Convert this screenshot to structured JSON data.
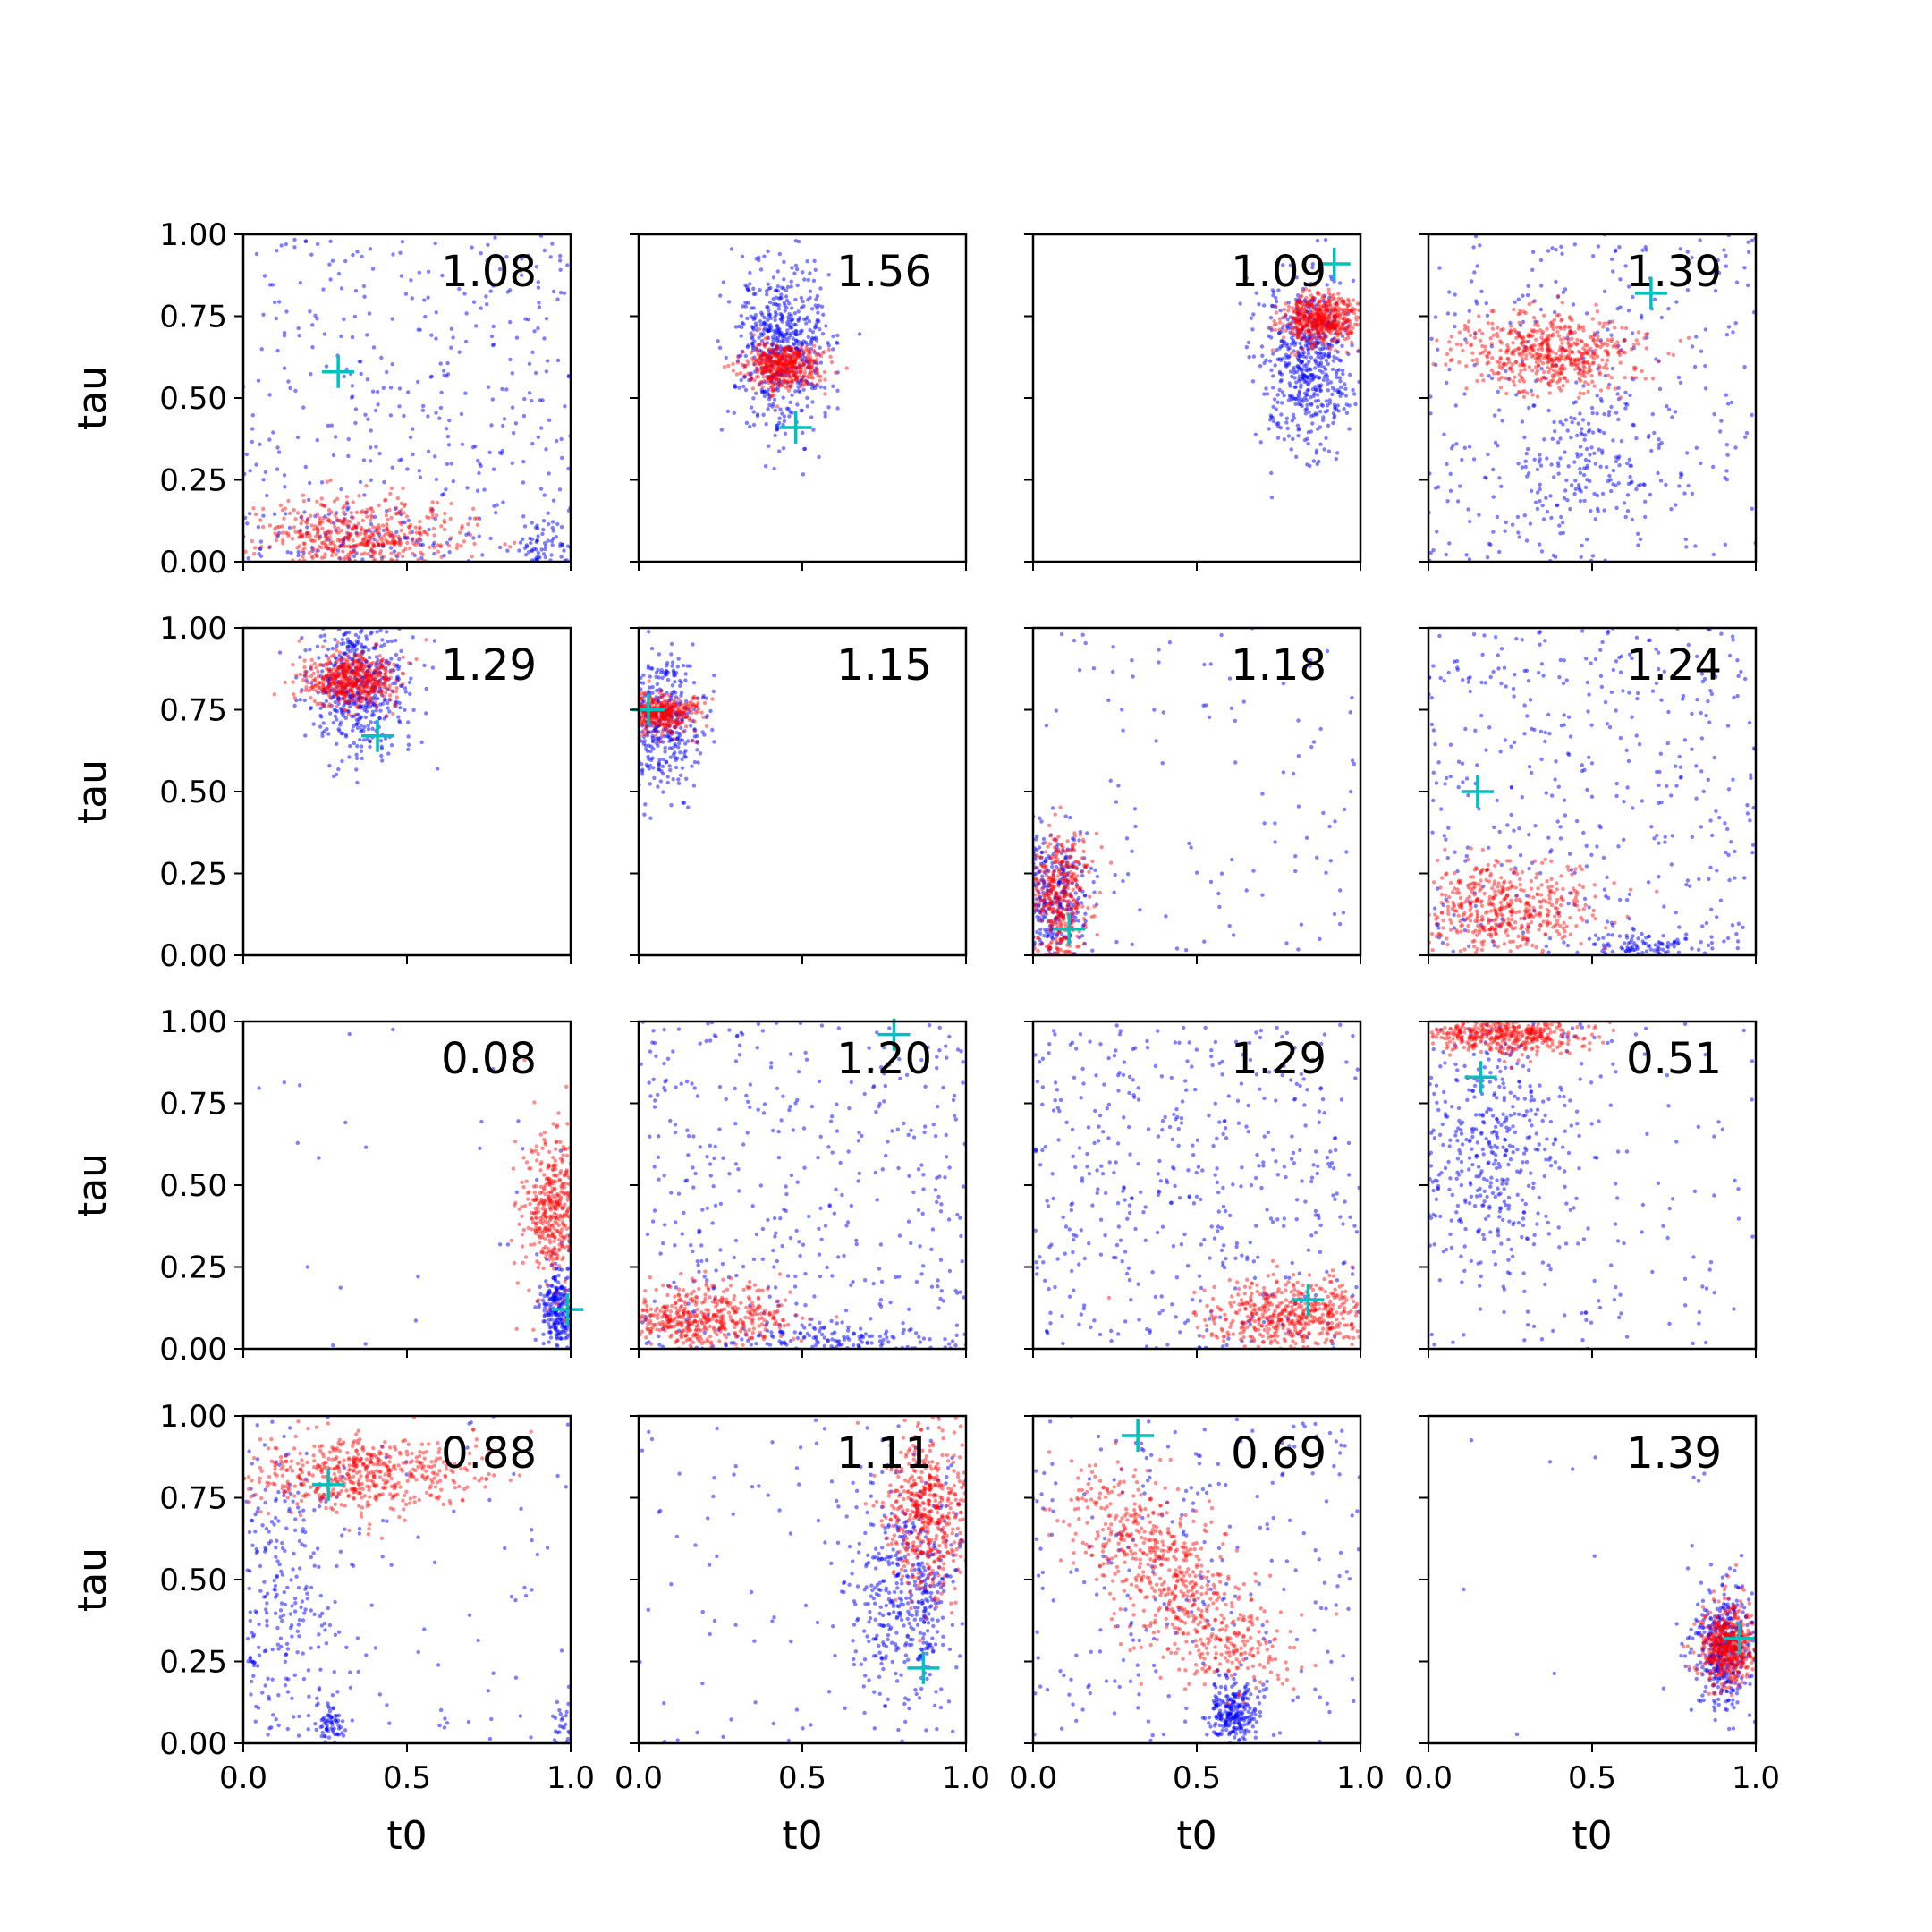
{
  "chart_data": {
    "type": "scatter",
    "layout": {
      "rows": 4,
      "cols": 4
    },
    "xlabel": "t0",
    "ylabel": "tau",
    "xlim": [
      0,
      1
    ],
    "ylim": [
      0,
      1
    ],
    "x_ticks": [
      0.0,
      0.5,
      1.0
    ],
    "x_tick_labels": [
      "0.0",
      "0.5",
      "1.0"
    ],
    "y_ticks": [
      0.0,
      0.25,
      0.5,
      0.75,
      1.0
    ],
    "y_tick_labels": [
      "0.00",
      "0.25",
      "0.50",
      "0.75",
      "1.00"
    ],
    "grid": false,
    "legend": "none",
    "colors": {
      "blue_points": "#0000ff",
      "red_points": "#ff0000",
      "marker": "#00bfbf"
    },
    "series_description": "blue dense scatter, red dense scatter, cyan plus marker",
    "panels": [
      {
        "value_label": "1.08",
        "marker": [
          0.29,
          0.58
        ],
        "blue": [
          {
            "type": "uniform",
            "n": 380
          },
          {
            "cx": 0.93,
            "cy": 0.05,
            "sx": 0.05,
            "sy": 0.05,
            "n": 80
          },
          {
            "cx": 0.38,
            "cy": 0.06,
            "sx": 0.17,
            "sy": 0.05,
            "n": 80
          }
        ],
        "red": [
          {
            "cx": 0.35,
            "cy": 0.08,
            "sx": 0.16,
            "sy": 0.06,
            "n": 500
          }
        ]
      },
      {
        "value_label": "1.56",
        "marker": [
          0.48,
          0.41
        ],
        "blue": [
          {
            "cx": 0.44,
            "cy": 0.66,
            "sx": 0.07,
            "sy": 0.13,
            "n": 550
          }
        ],
        "red": [
          {
            "cx": 0.44,
            "cy": 0.6,
            "sx": 0.06,
            "sy": 0.035,
            "n": 450
          }
        ]
      },
      {
        "value_label": "1.09",
        "marker": [
          0.92,
          0.91
        ],
        "blue": [
          {
            "cx": 0.84,
            "cy": 0.6,
            "sx": 0.07,
            "sy": 0.13,
            "n": 550
          }
        ],
        "red": [
          {
            "cx": 0.88,
            "cy": 0.74,
            "sx": 0.06,
            "sy": 0.04,
            "n": 500
          }
        ]
      },
      {
        "value_label": "1.39",
        "marker": [
          0.68,
          0.82
        ],
        "blue": [
          {
            "type": "uniform",
            "n": 330
          },
          {
            "cx": 0.5,
            "cy": 0.32,
            "sx": 0.12,
            "sy": 0.12,
            "n": 150
          }
        ],
        "red": [
          {
            "cx": 0.37,
            "cy": 0.64,
            "sx": 0.14,
            "sy": 0.06,
            "n": 550
          }
        ]
      },
      {
        "value_label": "1.29",
        "marker": [
          0.41,
          0.67
        ],
        "blue": [
          {
            "cx": 0.35,
            "cy": 0.83,
            "sx": 0.08,
            "sy": 0.11,
            "n": 500
          }
        ],
        "red": [
          {
            "cx": 0.33,
            "cy": 0.84,
            "sx": 0.07,
            "sy": 0.04,
            "n": 500
          }
        ]
      },
      {
        "value_label": "1.15",
        "marker": [
          0.03,
          0.75
        ],
        "blue": [
          {
            "cx": 0.06,
            "cy": 0.71,
            "sx": 0.07,
            "sy": 0.11,
            "n": 450
          }
        ],
        "red": [
          {
            "cx": 0.06,
            "cy": 0.74,
            "sx": 0.06,
            "sy": 0.03,
            "n": 400
          }
        ]
      },
      {
        "value_label": "1.18",
        "marker": [
          0.11,
          0.08
        ],
        "blue": [
          {
            "type": "uniform",
            "n": 120
          },
          {
            "cx": 0.05,
            "cy": 0.18,
            "sx": 0.06,
            "sy": 0.1,
            "n": 350
          }
        ],
        "red": [
          {
            "cx": 0.08,
            "cy": 0.18,
            "sx": 0.05,
            "sy": 0.11,
            "n": 400
          }
        ]
      },
      {
        "value_label": "1.24",
        "marker": [
          0.15,
          0.5
        ],
        "blue": [
          {
            "type": "uniform",
            "n": 400
          },
          {
            "cx": 0.65,
            "cy": 0.03,
            "sx": 0.1,
            "sy": 0.02,
            "n": 100
          }
        ],
        "red": [
          {
            "cx": 0.22,
            "cy": 0.15,
            "sx": 0.14,
            "sy": 0.07,
            "n": 500
          }
        ]
      },
      {
        "value_label": "0.08",
        "marker": [
          0.99,
          0.12
        ],
        "blue": [
          {
            "type": "uniform",
            "n": 30
          },
          {
            "cx": 0.96,
            "cy": 0.12,
            "sx": 0.03,
            "sy": 0.07,
            "n": 250
          }
        ],
        "red": [
          {
            "cx": 0.95,
            "cy": 0.42,
            "sx": 0.05,
            "sy": 0.12,
            "n": 450
          }
        ]
      },
      {
        "value_label": "1.20",
        "marker": [
          0.78,
          0.96
        ],
        "blue": [
          {
            "type": "uniform",
            "n": 420
          },
          {
            "cx": 0.6,
            "cy": 0.03,
            "sx": 0.15,
            "sy": 0.02,
            "n": 120
          }
        ],
        "red": [
          {
            "cx": 0.2,
            "cy": 0.09,
            "sx": 0.14,
            "sy": 0.05,
            "n": 500
          }
        ]
      },
      {
        "value_label": "1.29",
        "marker": [
          0.84,
          0.15
        ],
        "blue": [
          {
            "type": "uniform",
            "n": 480
          }
        ],
        "red": [
          {
            "cx": 0.8,
            "cy": 0.1,
            "sx": 0.14,
            "sy": 0.06,
            "n": 550
          }
        ]
      },
      {
        "value_label": "0.51",
        "marker": [
          0.16,
          0.83
        ],
        "blue": [
          {
            "type": "uniform",
            "n": 150
          },
          {
            "cx": 0.2,
            "cy": 0.6,
            "sx": 0.12,
            "sy": 0.2,
            "n": 400
          }
        ],
        "red": [
          {
            "cx": 0.22,
            "cy": 0.96,
            "sx": 0.12,
            "sy": 0.03,
            "n": 450
          }
        ]
      },
      {
        "value_label": "0.88",
        "marker": [
          0.26,
          0.79
        ],
        "blue": [
          {
            "type": "uniform",
            "n": 100
          },
          {
            "cx": 0.1,
            "cy": 0.4,
            "sx": 0.1,
            "sy": 0.25,
            "n": 300
          },
          {
            "cx": 0.27,
            "cy": 0.06,
            "sx": 0.02,
            "sy": 0.03,
            "n": 60
          },
          {
            "cx": 0.98,
            "cy": 0.05,
            "sx": 0.02,
            "sy": 0.04,
            "n": 30
          }
        ],
        "red": [
          {
            "cx": 0.35,
            "cy": 0.82,
            "sx": 0.18,
            "sy": 0.06,
            "n": 550
          }
        ]
      },
      {
        "value_label": "1.11",
        "marker": [
          0.87,
          0.23
        ],
        "blue": [
          {
            "type": "uniform",
            "n": 100
          },
          {
            "cx": 0.82,
            "cy": 0.45,
            "sx": 0.09,
            "sy": 0.18,
            "n": 450
          }
        ],
        "red": [
          {
            "cx": 0.88,
            "cy": 0.7,
            "sx": 0.06,
            "sy": 0.13,
            "n": 500
          }
        ]
      },
      {
        "value_label": "0.69",
        "marker": [
          0.32,
          0.94
        ],
        "blue": [
          {
            "type": "uniform",
            "n": 250
          },
          {
            "cx": 0.61,
            "cy": 0.09,
            "sx": 0.04,
            "sy": 0.05,
            "n": 250
          }
        ],
        "red": [
          {
            "type": "band",
            "x0": 0.2,
            "y0": 0.75,
            "x1": 0.65,
            "y1": 0.25,
            "sx": 0.1,
            "sy": 0.08,
            "n": 700
          }
        ]
      },
      {
        "value_label": "1.39",
        "marker": [
          0.95,
          0.32
        ],
        "blue": [
          {
            "cx": 0.9,
            "cy": 0.29,
            "sx": 0.05,
            "sy": 0.09,
            "n": 400
          },
          {
            "type": "uniform",
            "n": 12
          }
        ],
        "red": [
          {
            "cx": 0.91,
            "cy": 0.3,
            "sx": 0.04,
            "sy": 0.06,
            "n": 500
          }
        ]
      }
    ]
  }
}
